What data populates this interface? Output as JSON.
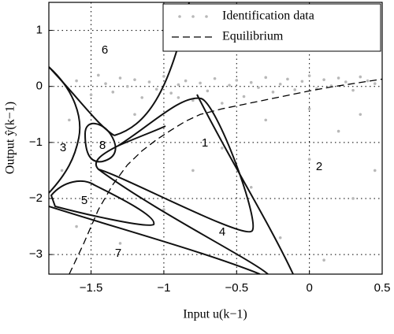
{
  "chart_data": {
    "type": "scatter",
    "xlabel": "Input u(k−1)",
    "ylabel": "Output ŷ(k−1)",
    "xlim": [
      -1.79,
      0.5
    ],
    "ylim": [
      -3.35,
      1.5
    ],
    "xticks": [
      {
        "value": -1.5,
        "label": "−1.5"
      },
      {
        "value": -1,
        "label": "−1"
      },
      {
        "value": -0.5,
        "label": "−0.5"
      },
      0,
      0.5
    ],
    "yticks": [
      1,
      0,
      {
        "value": -1,
        "label": "−1"
      },
      {
        "value": -2,
        "label": "−2"
      },
      {
        "value": -3,
        "label": "−3"
      }
    ],
    "grid": true,
    "legend": "upper right",
    "region_labels": [
      "6",
      "8",
      "3",
      "1",
      "2",
      "5",
      "4",
      "7"
    ],
    "series": [
      {
        "name": "Identification data",
        "color": "#b8b8b8",
        "type": "scatter",
        "x": [
          -1.6,
          -1.5,
          -1.45,
          -1.4,
          -1.35,
          -1.3,
          -1.25,
          -1.2,
          -1.15,
          -1.1,
          -1.05,
          -1.0,
          -0.95,
          -0.9,
          -0.85,
          -0.8,
          -0.75,
          -0.7,
          -0.65,
          -0.6,
          -0.55,
          -0.5,
          -0.45,
          -0.4,
          -0.35,
          -0.3,
          -0.25,
          -0.2,
          -0.15,
          -0.1,
          -0.05,
          0,
          0.05,
          0.1,
          0.15,
          0.2,
          0.25,
          0.3,
          0.35,
          0.4,
          0.45,
          -1.65,
          -1.7,
          -1.6,
          -1.3,
          -1.0,
          -0.8,
          -0.6,
          -0.4,
          -0.2,
          0,
          0.2,
          0.3,
          0.45,
          0.1,
          -0.5,
          -1.2,
          -0.9,
          0.35,
          -0.3,
          0.0
        ],
        "values": [
          0.1,
          -0.15,
          0.2,
          0.05,
          -0.1,
          0.15,
          0.0,
          0.12,
          -0.2,
          0.08,
          -0.05,
          0.18,
          -0.12,
          0.03,
          0.1,
          -0.25,
          0.06,
          -0.08,
          0.14,
          -0.3,
          0.02,
          0.11,
          -0.18,
          0.07,
          -0.02,
          0.16,
          -0.1,
          0.04,
          0.13,
          -0.06,
          0.09,
          0.19,
          -0.04,
          0.12,
          0.01,
          0.15,
          0.08,
          -0.07,
          0.17,
          0.1,
          0.05,
          -0.6,
          -1.5,
          -2.5,
          -2.8,
          -2.2,
          -1.5,
          -1.1,
          -1.8,
          -2.7,
          -1.3,
          -0.8,
          -2.0,
          -1.5,
          -3.1,
          -3.0,
          -0.5,
          -0.2,
          -0.5,
          -0.6,
          -0.4
        ]
      },
      {
        "name": "Equilibrium",
        "color": "#000000",
        "type": "dashed",
        "x": [
          -1.65,
          -1.55,
          -1.45,
          -1.35,
          -1.25,
          -1.15,
          -1.05,
          -0.95,
          -0.85,
          -0.75,
          -0.6,
          -0.45,
          -0.3,
          -0.15,
          0,
          0.15,
          0.3,
          0.5
        ],
        "values": [
          -3.35,
          -2.8,
          -2.2,
          -1.75,
          -1.4,
          -1.15,
          -0.95,
          -0.78,
          -0.62,
          -0.5,
          -0.4,
          -0.32,
          -0.24,
          -0.16,
          -0.08,
          -0.01,
          0.05,
          0.13
        ]
      }
    ]
  }
}
